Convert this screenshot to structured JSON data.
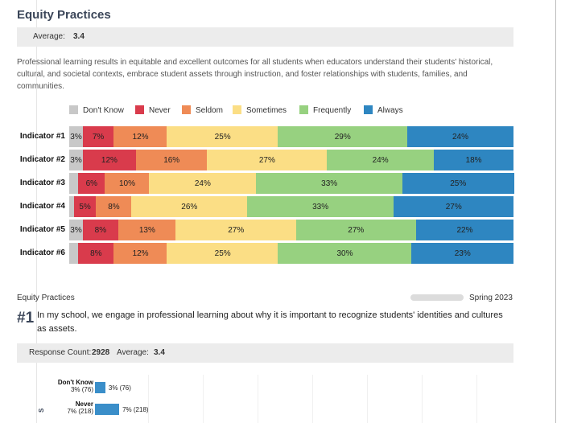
{
  "header": {
    "title": "Equity Practices",
    "average_label": "Average:",
    "average_value": "3.4",
    "description": "Professional learning results in equitable and excellent outcomes for all students when educators understand their students' historical, cultural, and societal contexts, embrace student assets through instruction, and foster relationships with students, families, and communities."
  },
  "chart_data": {
    "type": "bar",
    "orientation": "horizontal",
    "stacked": true,
    "legend_position": "top",
    "categories": [
      "Indicator #1",
      "Indicator #2",
      "Indicator #3",
      "Indicator #4",
      "Indicator #5",
      "Indicator #6"
    ],
    "series": [
      {
        "name": "Don't Know",
        "color": "#c8c8c8",
        "values": [
          3,
          3,
          2,
          1,
          3,
          2
        ]
      },
      {
        "name": "Never",
        "color": "#d93b4c",
        "values": [
          7,
          12,
          6,
          5,
          8,
          8
        ]
      },
      {
        "name": "Seldom",
        "color": "#ef8b56",
        "values": [
          12,
          16,
          10,
          8,
          13,
          12
        ]
      },
      {
        "name": "Sometimes",
        "color": "#fbde85",
        "values": [
          25,
          27,
          24,
          26,
          27,
          25
        ]
      },
      {
        "name": "Frequently",
        "color": "#97d180",
        "values": [
          29,
          24,
          33,
          33,
          27,
          30
        ]
      },
      {
        "name": "Always",
        "color": "#2e86c1",
        "values": [
          24,
          18,
          25,
          27,
          22,
          23
        ]
      }
    ],
    "labels": [
      [
        "3%",
        "7%",
        "12%",
        "25%",
        "29%",
        "24%"
      ],
      [
        "3%",
        "12%",
        "16%",
        "27%",
        "24%",
        "18%"
      ],
      [
        "",
        "6%",
        "10%",
        "24%",
        "33%",
        "25%"
      ],
      [
        "",
        "5%",
        "8%",
        "26%",
        "33%",
        "27%"
      ],
      [
        "3%",
        "8%",
        "13%",
        "27%",
        "27%",
        "22%"
      ],
      [
        "",
        "8%",
        "12%",
        "25%",
        "30%",
        "23%"
      ]
    ]
  },
  "footer": {
    "section": "Equity Practices",
    "period": "Spring 2023"
  },
  "question": {
    "number": "#1",
    "text": "In my school, we engage in professional learning about why it is important to recognize students' identities and cultures as assets.",
    "response_count_label": "Response Count:",
    "response_count": "2928",
    "average_label": "Average:",
    "average_value": "3.4",
    "side_label": "S",
    "items": [
      {
        "name": "Don't Know",
        "sub": "3% (76)",
        "bar_label": "3% (76)",
        "value": 3
      },
      {
        "name": "Never",
        "sub": "7% (218)",
        "bar_label": "7% (218)",
        "value": 7
      }
    ]
  }
}
